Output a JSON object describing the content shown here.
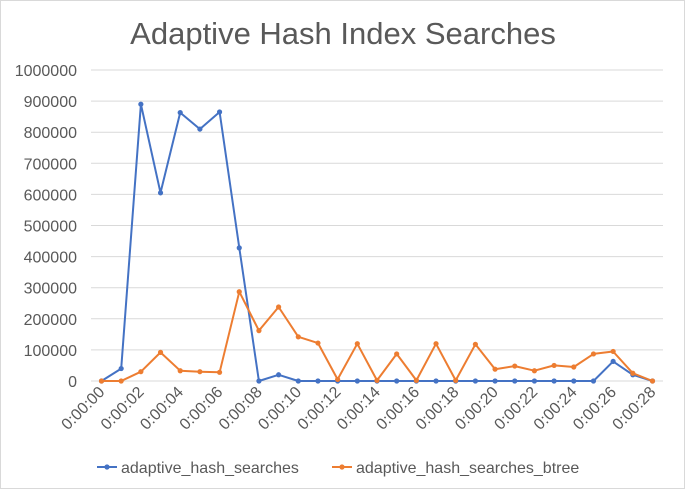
{
  "chart_data": {
    "type": "line",
    "title": "Adaptive Hash Index Searches",
    "xlabel": "",
    "ylabel": "",
    "ylim": [
      0,
      1000000
    ],
    "yticks": [
      0,
      100000,
      200000,
      300000,
      400000,
      500000,
      600000,
      700000,
      800000,
      900000,
      1000000
    ],
    "xtick_labels": [
      "0:00:00",
      "0:00:02",
      "0:00:04",
      "0:00:06",
      "0:00:08",
      "0:00:10",
      "0:00:12",
      "0:00:14",
      "0:00:16",
      "0:00:18",
      "0:00:20",
      "0:00:22",
      "0:00:24",
      "0:00:26",
      "0:00:28"
    ],
    "x": [
      "0:00:00",
      "0:00:01",
      "0:00:02",
      "0:00:03",
      "0:00:04",
      "0:00:05",
      "0:00:06",
      "0:00:07",
      "0:00:08",
      "0:00:09",
      "0:00:10",
      "0:00:11",
      "0:00:12",
      "0:00:13",
      "0:00:14",
      "0:00:15",
      "0:00:16",
      "0:00:17",
      "0:00:18",
      "0:00:19",
      "0:00:20",
      "0:00:21",
      "0:00:22",
      "0:00:23",
      "0:00:24",
      "0:00:25",
      "0:00:26",
      "0:00:27",
      "0:00:28"
    ],
    "series": [
      {
        "name": "adaptive_hash_searches",
        "color": "#4472c4",
        "values": [
          0,
          40000,
          890000,
          605000,
          863000,
          810000,
          865000,
          428000,
          0,
          20000,
          0,
          0,
          0,
          0,
          0,
          0,
          0,
          0,
          0,
          0,
          0,
          0,
          0,
          0,
          0,
          0,
          63000,
          20000,
          0
        ]
      },
      {
        "name": "adaptive_hash_searches_btree",
        "color": "#ed7d31",
        "values": [
          0,
          0,
          30000,
          92000,
          33000,
          30000,
          28000,
          287000,
          162000,
          238000,
          142000,
          122000,
          5000,
          120000,
          2000,
          87000,
          2000,
          120000,
          2000,
          118000,
          38000,
          48000,
          33000,
          50000,
          45000,
          87000,
          95000,
          25000,
          0
        ]
      }
    ],
    "grid": true,
    "legend_position": "bottom"
  }
}
